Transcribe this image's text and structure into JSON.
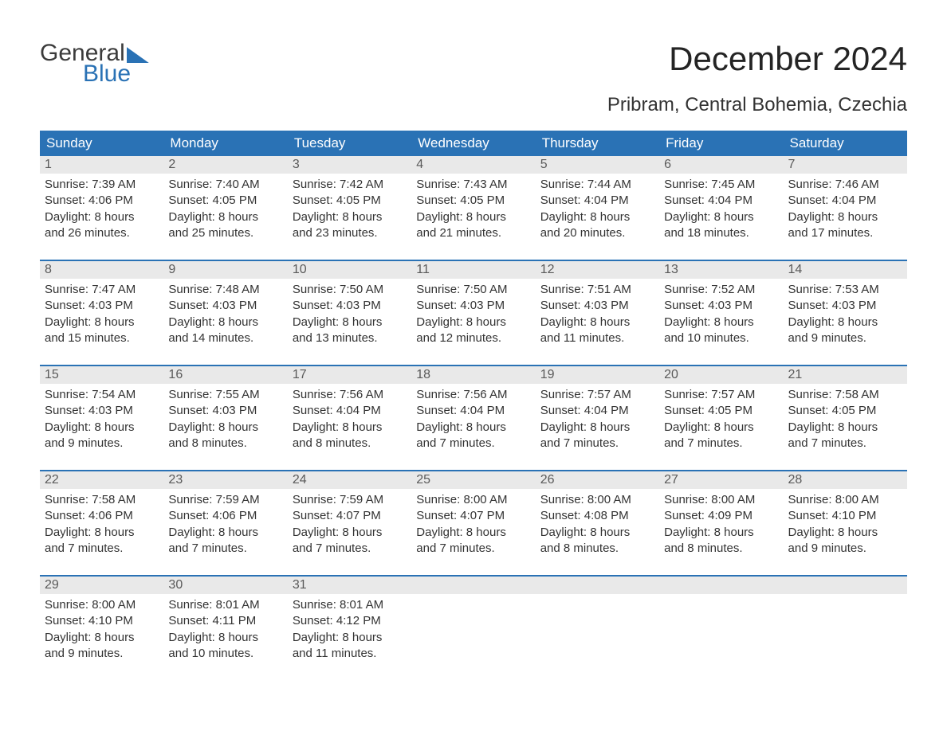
{
  "logo": {
    "general": "General",
    "blue": "Blue"
  },
  "title": "December 2024",
  "location": "Pribram, Central Bohemia, Czechia",
  "colors": {
    "header_bg": "#2a72b5",
    "header_text": "#ffffff",
    "daynum_bg": "#e9e9e9",
    "daynum_text": "#5a5a5a",
    "body_text": "#333333",
    "week_border": "#2a72b5",
    "page_bg": "#ffffff"
  },
  "typography": {
    "title_fontsize": 42,
    "location_fontsize": 24,
    "dayheader_fontsize": 17,
    "daynum_fontsize": 16,
    "body_fontsize": 15
  },
  "day_labels": [
    "Sunday",
    "Monday",
    "Tuesday",
    "Wednesday",
    "Thursday",
    "Friday",
    "Saturday"
  ],
  "weeks": [
    [
      {
        "n": "1",
        "sunrise": "Sunrise: 7:39 AM",
        "sunset": "Sunset: 4:06 PM",
        "dl1": "Daylight: 8 hours",
        "dl2": "and 26 minutes."
      },
      {
        "n": "2",
        "sunrise": "Sunrise: 7:40 AM",
        "sunset": "Sunset: 4:05 PM",
        "dl1": "Daylight: 8 hours",
        "dl2": "and 25 minutes."
      },
      {
        "n": "3",
        "sunrise": "Sunrise: 7:42 AM",
        "sunset": "Sunset: 4:05 PM",
        "dl1": "Daylight: 8 hours",
        "dl2": "and 23 minutes."
      },
      {
        "n": "4",
        "sunrise": "Sunrise: 7:43 AM",
        "sunset": "Sunset: 4:05 PM",
        "dl1": "Daylight: 8 hours",
        "dl2": "and 21 minutes."
      },
      {
        "n": "5",
        "sunrise": "Sunrise: 7:44 AM",
        "sunset": "Sunset: 4:04 PM",
        "dl1": "Daylight: 8 hours",
        "dl2": "and 20 minutes."
      },
      {
        "n": "6",
        "sunrise": "Sunrise: 7:45 AM",
        "sunset": "Sunset: 4:04 PM",
        "dl1": "Daylight: 8 hours",
        "dl2": "and 18 minutes."
      },
      {
        "n": "7",
        "sunrise": "Sunrise: 7:46 AM",
        "sunset": "Sunset: 4:04 PM",
        "dl1": "Daylight: 8 hours",
        "dl2": "and 17 minutes."
      }
    ],
    [
      {
        "n": "8",
        "sunrise": "Sunrise: 7:47 AM",
        "sunset": "Sunset: 4:03 PM",
        "dl1": "Daylight: 8 hours",
        "dl2": "and 15 minutes."
      },
      {
        "n": "9",
        "sunrise": "Sunrise: 7:48 AM",
        "sunset": "Sunset: 4:03 PM",
        "dl1": "Daylight: 8 hours",
        "dl2": "and 14 minutes."
      },
      {
        "n": "10",
        "sunrise": "Sunrise: 7:50 AM",
        "sunset": "Sunset: 4:03 PM",
        "dl1": "Daylight: 8 hours",
        "dl2": "and 13 minutes."
      },
      {
        "n": "11",
        "sunrise": "Sunrise: 7:50 AM",
        "sunset": "Sunset: 4:03 PM",
        "dl1": "Daylight: 8 hours",
        "dl2": "and 12 minutes."
      },
      {
        "n": "12",
        "sunrise": "Sunrise: 7:51 AM",
        "sunset": "Sunset: 4:03 PM",
        "dl1": "Daylight: 8 hours",
        "dl2": "and 11 minutes."
      },
      {
        "n": "13",
        "sunrise": "Sunrise: 7:52 AM",
        "sunset": "Sunset: 4:03 PM",
        "dl1": "Daylight: 8 hours",
        "dl2": "and 10 minutes."
      },
      {
        "n": "14",
        "sunrise": "Sunrise: 7:53 AM",
        "sunset": "Sunset: 4:03 PM",
        "dl1": "Daylight: 8 hours",
        "dl2": "and 9 minutes."
      }
    ],
    [
      {
        "n": "15",
        "sunrise": "Sunrise: 7:54 AM",
        "sunset": "Sunset: 4:03 PM",
        "dl1": "Daylight: 8 hours",
        "dl2": "and 9 minutes."
      },
      {
        "n": "16",
        "sunrise": "Sunrise: 7:55 AM",
        "sunset": "Sunset: 4:03 PM",
        "dl1": "Daylight: 8 hours",
        "dl2": "and 8 minutes."
      },
      {
        "n": "17",
        "sunrise": "Sunrise: 7:56 AM",
        "sunset": "Sunset: 4:04 PM",
        "dl1": "Daylight: 8 hours",
        "dl2": "and 8 minutes."
      },
      {
        "n": "18",
        "sunrise": "Sunrise: 7:56 AM",
        "sunset": "Sunset: 4:04 PM",
        "dl1": "Daylight: 8 hours",
        "dl2": "and 7 minutes."
      },
      {
        "n": "19",
        "sunrise": "Sunrise: 7:57 AM",
        "sunset": "Sunset: 4:04 PM",
        "dl1": "Daylight: 8 hours",
        "dl2": "and 7 minutes."
      },
      {
        "n": "20",
        "sunrise": "Sunrise: 7:57 AM",
        "sunset": "Sunset: 4:05 PM",
        "dl1": "Daylight: 8 hours",
        "dl2": "and 7 minutes."
      },
      {
        "n": "21",
        "sunrise": "Sunrise: 7:58 AM",
        "sunset": "Sunset: 4:05 PM",
        "dl1": "Daylight: 8 hours",
        "dl2": "and 7 minutes."
      }
    ],
    [
      {
        "n": "22",
        "sunrise": "Sunrise: 7:58 AM",
        "sunset": "Sunset: 4:06 PM",
        "dl1": "Daylight: 8 hours",
        "dl2": "and 7 minutes."
      },
      {
        "n": "23",
        "sunrise": "Sunrise: 7:59 AM",
        "sunset": "Sunset: 4:06 PM",
        "dl1": "Daylight: 8 hours",
        "dl2": "and 7 minutes."
      },
      {
        "n": "24",
        "sunrise": "Sunrise: 7:59 AM",
        "sunset": "Sunset: 4:07 PM",
        "dl1": "Daylight: 8 hours",
        "dl2": "and 7 minutes."
      },
      {
        "n": "25",
        "sunrise": "Sunrise: 8:00 AM",
        "sunset": "Sunset: 4:07 PM",
        "dl1": "Daylight: 8 hours",
        "dl2": "and 7 minutes."
      },
      {
        "n": "26",
        "sunrise": "Sunrise: 8:00 AM",
        "sunset": "Sunset: 4:08 PM",
        "dl1": "Daylight: 8 hours",
        "dl2": "and 8 minutes."
      },
      {
        "n": "27",
        "sunrise": "Sunrise: 8:00 AM",
        "sunset": "Sunset: 4:09 PM",
        "dl1": "Daylight: 8 hours",
        "dl2": "and 8 minutes."
      },
      {
        "n": "28",
        "sunrise": "Sunrise: 8:00 AM",
        "sunset": "Sunset: 4:10 PM",
        "dl1": "Daylight: 8 hours",
        "dl2": "and 9 minutes."
      }
    ],
    [
      {
        "n": "29",
        "sunrise": "Sunrise: 8:00 AM",
        "sunset": "Sunset: 4:10 PM",
        "dl1": "Daylight: 8 hours",
        "dl2": "and 9 minutes."
      },
      {
        "n": "30",
        "sunrise": "Sunrise: 8:01 AM",
        "sunset": "Sunset: 4:11 PM",
        "dl1": "Daylight: 8 hours",
        "dl2": "and 10 minutes."
      },
      {
        "n": "31",
        "sunrise": "Sunrise: 8:01 AM",
        "sunset": "Sunset: 4:12 PM",
        "dl1": "Daylight: 8 hours",
        "dl2": "and 11 minutes."
      },
      {
        "empty": true
      },
      {
        "empty": true
      },
      {
        "empty": true
      },
      {
        "empty": true
      }
    ]
  ]
}
